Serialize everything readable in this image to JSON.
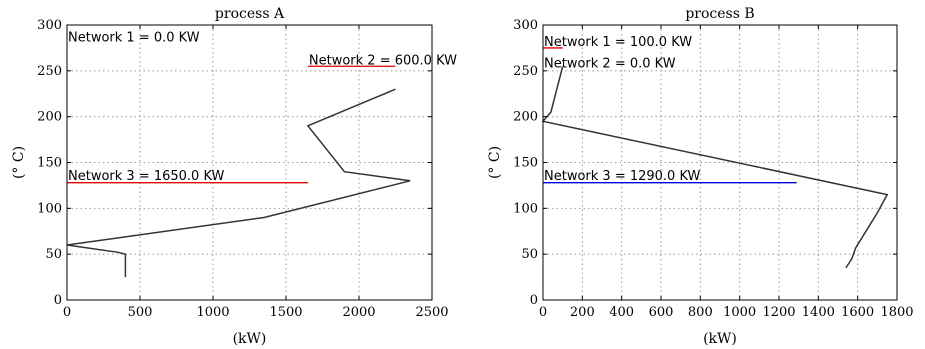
{
  "chart_data": [
    {
      "type": "line",
      "title": "process A",
      "xlabel": "(kW)",
      "ylabel": "(° C)",
      "xlim": [
        0,
        2500
      ],
      "ylim": [
        0,
        300
      ],
      "xticks": [
        0,
        500,
        1000,
        1500,
        2000,
        2500
      ],
      "yticks": [
        0,
        50,
        100,
        150,
        200,
        250,
        300
      ],
      "grid": true,
      "series": [
        {
          "color": "#333333",
          "points": [
            [
              400,
              25
            ],
            [
              400,
              50
            ],
            [
              350,
              52
            ],
            [
              0,
              60
            ],
            [
              1350,
              90
            ],
            [
              2350,
              130
            ],
            [
              1900,
              140
            ],
            [
              1650,
              190
            ],
            [
              2250,
              230
            ]
          ]
        }
      ],
      "annotations": [
        {
          "text": "Network 1 = 0.0 KW",
          "x": 0,
          "y": 283,
          "color": "#e00000",
          "line": [
            0,
            0
          ],
          "line_y": 283
        },
        {
          "text": "Network 2 = 600.0 KW",
          "x": 1650,
          "y": 258,
          "color": "#e00000",
          "line": [
            1650,
            2250
          ],
          "line_y": 255
        },
        {
          "text": "Network 3 = 1650.0 KW",
          "x": 0,
          "y": 132,
          "color": "#e00000",
          "line": [
            0,
            1650
          ],
          "line_y": 128
        }
      ]
    },
    {
      "type": "line",
      "title": "process B",
      "xlabel": "(kW)",
      "ylabel": "(° C)",
      "xlim": [
        0,
        1800
      ],
      "ylim": [
        0,
        300
      ],
      "xticks": [
        0,
        200,
        400,
        600,
        800,
        1000,
        1200,
        1400,
        1600,
        1800
      ],
      "yticks": [
        0,
        50,
        100,
        150,
        200,
        250,
        300
      ],
      "grid": true,
      "series": [
        {
          "color": "#333333",
          "points": [
            [
              1540,
              35
            ],
            [
              1570,
              45
            ],
            [
              1590,
              57
            ],
            [
              1700,
              95
            ],
            [
              1750,
              115
            ],
            [
              0,
              195
            ],
            [
              40,
              205
            ],
            [
              100,
              255
            ]
          ]
        }
      ],
      "annotations": [
        {
          "text": "Network 1 = 100.0 KW",
          "x": 0,
          "y": 278,
          "color": "#e00000",
          "line": [
            0,
            100
          ],
          "line_y": 275
        },
        {
          "text": "Network 2 = 0.0 KW",
          "x": 0,
          "y": 255,
          "color": "#e00000",
          "line": [
            0,
            0
          ],
          "line_y": 255
        },
        {
          "text": "Network 3 = 1290.0 KW",
          "x": 0,
          "y": 132,
          "color": "#0000cc",
          "line": [
            0,
            1290
          ],
          "line_y": 128
        }
      ]
    }
  ]
}
